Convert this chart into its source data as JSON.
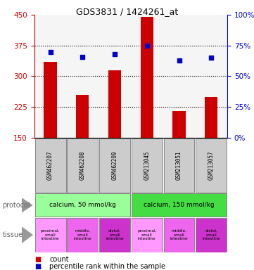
{
  "title": "GDS3831 / 1424261_at",
  "samples": [
    "GSM462207",
    "GSM462208",
    "GSM462209",
    "GSM213045",
    "GSM213051",
    "GSM213057"
  ],
  "counts": [
    335,
    255,
    315,
    445,
    215,
    250
  ],
  "percentiles": [
    70,
    66,
    68,
    75,
    63,
    65
  ],
  "ylim_left": [
    150,
    450
  ],
  "ylim_right": [
    0,
    100
  ],
  "yticks_left": [
    150,
    225,
    300,
    375,
    450
  ],
  "yticks_right": [
    0,
    25,
    50,
    75,
    100
  ],
  "bar_color": "#cc0000",
  "dot_color": "#0000cc",
  "protocol_color1": "#99ff99",
  "protocol_color2": "#44dd44",
  "tissue_colors": [
    "#ff99ff",
    "#ee66ee",
    "#cc33cc",
    "#ff99ff",
    "#ee66ee",
    "#cc33cc"
  ],
  "sample_box_color": "#cccccc",
  "protocol_labels": [
    "calcium, 50 mmol/kg",
    "calcium, 150 mmol/kg"
  ],
  "tissue_labels": [
    "proximal,\nsmall\nintestine",
    "middle,\nsmall\nintestine",
    "distal,\nsmall\nintestine",
    "proximal,\nsmall\nintestine",
    "middle,\nsmall\nintestine",
    "distal,\nsmall\nintestine"
  ],
  "bg_color": "#ffffff",
  "axis_color_left": "#cc0000",
  "axis_color_right": "#0000cc",
  "plot_bg": "#f5f5f5",
  "gridline_yticks": [
    225,
    300,
    375
  ]
}
